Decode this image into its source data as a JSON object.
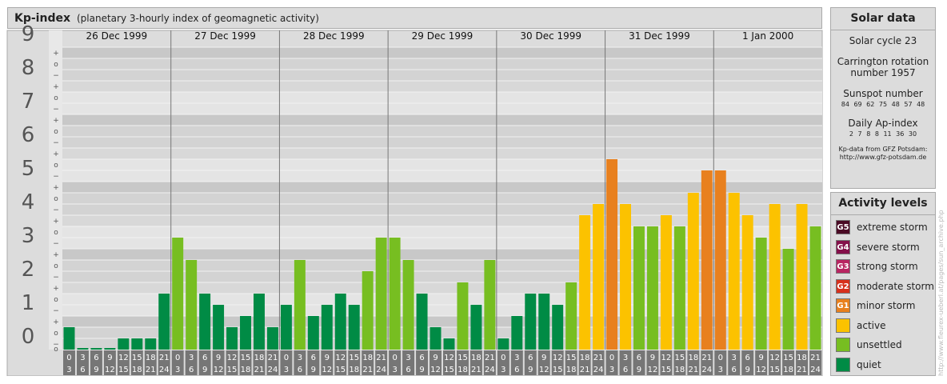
{
  "header": {
    "title": "Kp-index",
    "subtitle": "(planetary 3-hourly index of geomagnetic activity)"
  },
  "chart_data": {
    "type": "bar",
    "ylim": [
      0,
      9
    ],
    "y_ticks": [
      "0",
      "1",
      "2",
      "3",
      "4",
      "5",
      "6",
      "7",
      "8",
      "9"
    ],
    "minor_marks": [
      "+",
      "o",
      "−"
    ],
    "days": [
      "26 Dec 1999",
      "27 Dec 1999",
      "28 Dec 1999",
      "29 Dec 1999",
      "30 Dec 1999",
      "31 Dec 1999",
      "1 Jan 2000"
    ],
    "hour_start_labels": [
      "0",
      "3",
      "6",
      "9",
      "12",
      "15",
      "18",
      "21"
    ],
    "hour_end_labels": [
      "3",
      "6",
      "9",
      "12",
      "15",
      "18",
      "21",
      "24"
    ],
    "values": [
      0.667,
      0,
      0,
      0,
      0.333,
      0.333,
      0.333,
      1.667,
      3.333,
      2.667,
      1.667,
      1.333,
      0.667,
      1.0,
      1.667,
      0.667,
      1.333,
      2.667,
      1.0,
      1.333,
      1.667,
      1.333,
      2.333,
      3.333,
      3.333,
      2.667,
      1.667,
      0.667,
      0.333,
      2.0,
      1.333,
      2.667,
      0.333,
      1.0,
      1.667,
      1.667,
      1.333,
      2.0,
      4.0,
      4.333,
      5.667,
      4.333,
      3.667,
      3.667,
      4.0,
      3.667,
      4.667,
      5.333,
      5.333,
      4.667,
      4.0,
      3.333,
      4.333,
      3.0,
      4.333,
      3.667
    ],
    "colors": {
      "quiet": "#008b45",
      "unsettled": "#77be21",
      "active": "#fcc200",
      "minor": "#e8801e",
      "moderate": "#d7301c",
      "strong": "#b82561",
      "severe": "#84104a",
      "extreme": "#4a0b25"
    }
  },
  "solar": {
    "title": "Solar data",
    "cycle": "Solar cycle 23",
    "carrington_1": "Carrington rotation",
    "carrington_2": "number 1957",
    "sunspot_title": "Sunspot number",
    "sunspot_values": "84 69 62 75 48 57 48",
    "ap_title": "Daily Ap-index",
    "ap_values": "2 7 8 8 11 36 30",
    "source_1": "Kp-data from GFZ Potsdam:",
    "source_2": "http://www.gfz-potsdam.de"
  },
  "activity": {
    "title": "Activity levels",
    "levels": [
      {
        "code": "G5",
        "label": "extreme storm",
        "color": "#4a0b25"
      },
      {
        "code": "G4",
        "label": "severe storm",
        "color": "#84104a"
      },
      {
        "code": "G3",
        "label": "strong storm",
        "color": "#b82561"
      },
      {
        "code": "G2",
        "label": "moderate storm",
        "color": "#d7301c"
      },
      {
        "code": "G1",
        "label": "minor storm",
        "color": "#e8801e"
      },
      {
        "code": "",
        "label": "active",
        "color": "#fcc200"
      },
      {
        "code": "",
        "label": "unsettled",
        "color": "#77be21"
      },
      {
        "code": "",
        "label": "quiet",
        "color": "#008b45"
      }
    ]
  },
  "watermark": "http://www.fleurex-ueberl.at/pages/sun_archive.php"
}
